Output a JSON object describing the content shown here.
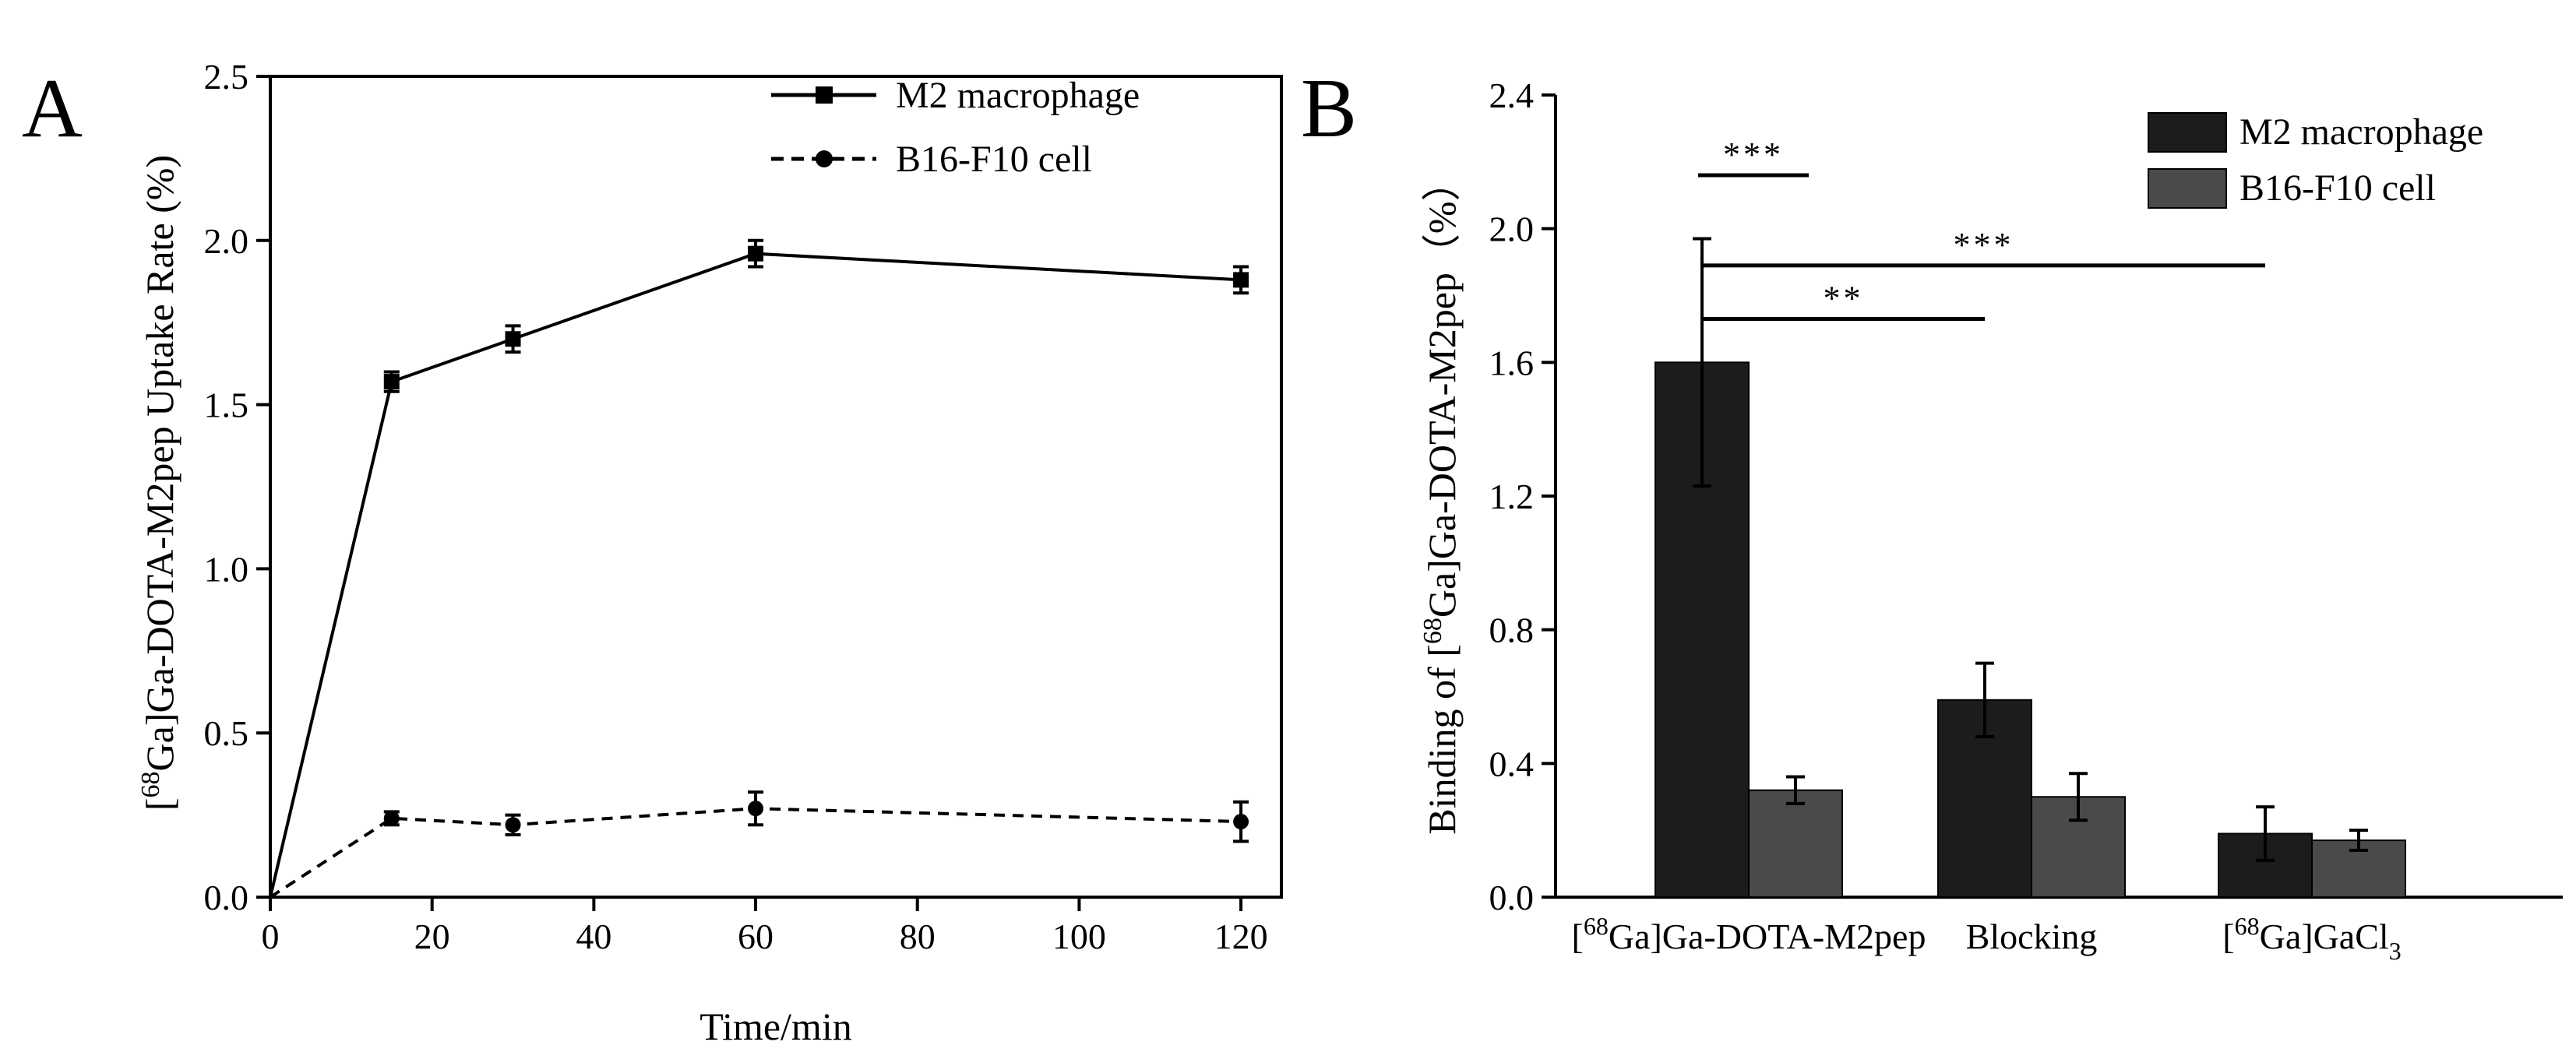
{
  "chart_data": [
    {
      "panel": "A",
      "type": "line",
      "xlabel": "Time/min",
      "ylabel": {
        "pre": "[",
        "sup": "68",
        "post": "Ga]Ga-DOTA-M2pep Uptake Rate (%)"
      },
      "xlim": [
        0,
        125
      ],
      "ylim": [
        0,
        2.5
      ],
      "xticks": [
        0,
        20,
        40,
        60,
        80,
        100,
        120
      ],
      "yticks": [
        0.0,
        0.5,
        1.0,
        1.5,
        2.0,
        2.5
      ],
      "ytick_labels": [
        "0.0",
        "0.5",
        "1.0",
        "1.5",
        "2.0",
        "2.5"
      ],
      "legend_position": "top-right",
      "series": [
        {
          "name": "M2 macrophage",
          "line_style": "solid",
          "marker": "square",
          "x": [
            0,
            15,
            30,
            60,
            120
          ],
          "y": [
            0,
            1.57,
            1.7,
            1.96,
            1.88
          ],
          "err": [
            0,
            0.03,
            0.04,
            0.04,
            0.04
          ]
        },
        {
          "name": "B16-F10 cell",
          "line_style": "dashed",
          "marker": "circle",
          "x": [
            0,
            15,
            30,
            60,
            120
          ],
          "y": [
            0,
            0.24,
            0.22,
            0.27,
            0.23
          ],
          "err": [
            0,
            0.02,
            0.03,
            0.05,
            0.06
          ]
        }
      ]
    },
    {
      "panel": "B",
      "type": "bar",
      "ylabel": {
        "pre": "Binding of [",
        "sup": "68",
        "post": "Ga]Ga-DOTA-M2pep（%）"
      },
      "ylim": [
        0,
        2.4
      ],
      "yticks": [
        0.0,
        0.4,
        0.8,
        1.2,
        1.6,
        2.0,
        2.4
      ],
      "ytick_labels": [
        "0.0",
        "0.4",
        "0.8",
        "1.2",
        "1.6",
        "2.0",
        "2.4"
      ],
      "categories": [
        {
          "pre": "[",
          "sup": "68",
          "post": "Ga]Ga-DOTA-M2pep",
          "sub": ""
        },
        {
          "pre": "Blocking",
          "sup": "",
          "post": "",
          "sub": ""
        },
        {
          "pre": "[",
          "sup": "68",
          "post": "Ga]GaCl",
          "sub": "3"
        }
      ],
      "legend_position": "top-right",
      "series": [
        {
          "name": "M2 macrophage",
          "color": "#1c1c1c",
          "values": [
            1.6,
            0.59,
            0.19
          ],
          "err": [
            0.37,
            0.11,
            0.08
          ]
        },
        {
          "name": "B16-F10 cell",
          "color": "#4a4a4a",
          "values": [
            0.32,
            0.3,
            0.17
          ],
          "err": [
            0.04,
            0.07,
            0.03
          ]
        }
      ],
      "significance": [
        {
          "label": "***",
          "from": [
            0,
            0
          ],
          "to": [
            0,
            1
          ],
          "level": 2.16
        },
        {
          "label": "***",
          "from": [
            0,
            0
          ],
          "to": [
            2,
            0
          ],
          "level": 1.89
        },
        {
          "label": "**",
          "from": [
            0,
            0
          ],
          "to": [
            1,
            0
          ],
          "level": 1.73
        }
      ]
    }
  ]
}
